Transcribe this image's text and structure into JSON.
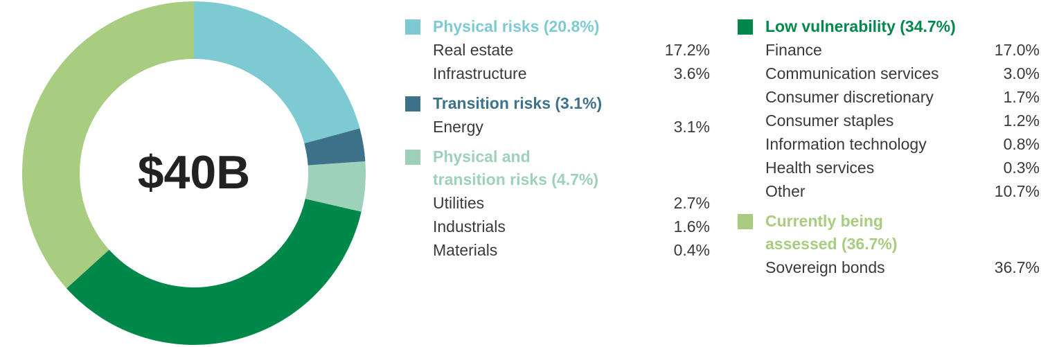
{
  "chart_data": {
    "type": "donut",
    "center_label": "$40B",
    "categories": [
      "Physical risks (20.8%)",
      "Transition risks (3.1%)",
      "Physical and transition risks (4.7%)",
      "Low vulnerability (34.7%)",
      "Currently being assessed (36.7%)"
    ],
    "values": [
      20.8,
      3.1,
      4.7,
      34.7,
      36.7
    ],
    "colors": [
      "#7ecad3",
      "#3d728a",
      "#9dd1b9",
      "#00884a",
      "#a8cc80"
    ],
    "breakdown": [
      {
        "names": [
          "Real estate",
          "Infrastructure"
        ],
        "values": [
          17.2,
          3.6
        ],
        "value_labels": [
          "17.2%",
          "3.6%"
        ]
      },
      {
        "names": [
          "Energy"
        ],
        "values": [
          3.1
        ],
        "value_labels": [
          "3.1%"
        ]
      },
      {
        "names": [
          "Utilities",
          "Industrials",
          "Materials"
        ],
        "values": [
          2.7,
          1.6,
          0.4
        ],
        "value_labels": [
          "2.7%",
          "1.6%",
          "0.4%"
        ]
      },
      {
        "names": [
          "Finance",
          "Communication services",
          "Consumer discretionary",
          "Consumer staples",
          "Information technology",
          "Health services",
          "Other"
        ],
        "values": [
          17.0,
          3.0,
          1.7,
          1.2,
          0.8,
          0.3,
          10.7
        ],
        "value_labels": [
          "17.0%",
          "3.0%",
          "1.7%",
          "1.2%",
          "0.8%",
          "0.3%",
          "10.7%"
        ]
      },
      {
        "names": [
          "Sovereign bonds"
        ],
        "values": [
          36.7
        ],
        "value_labels": [
          "36.7%"
        ]
      }
    ]
  }
}
